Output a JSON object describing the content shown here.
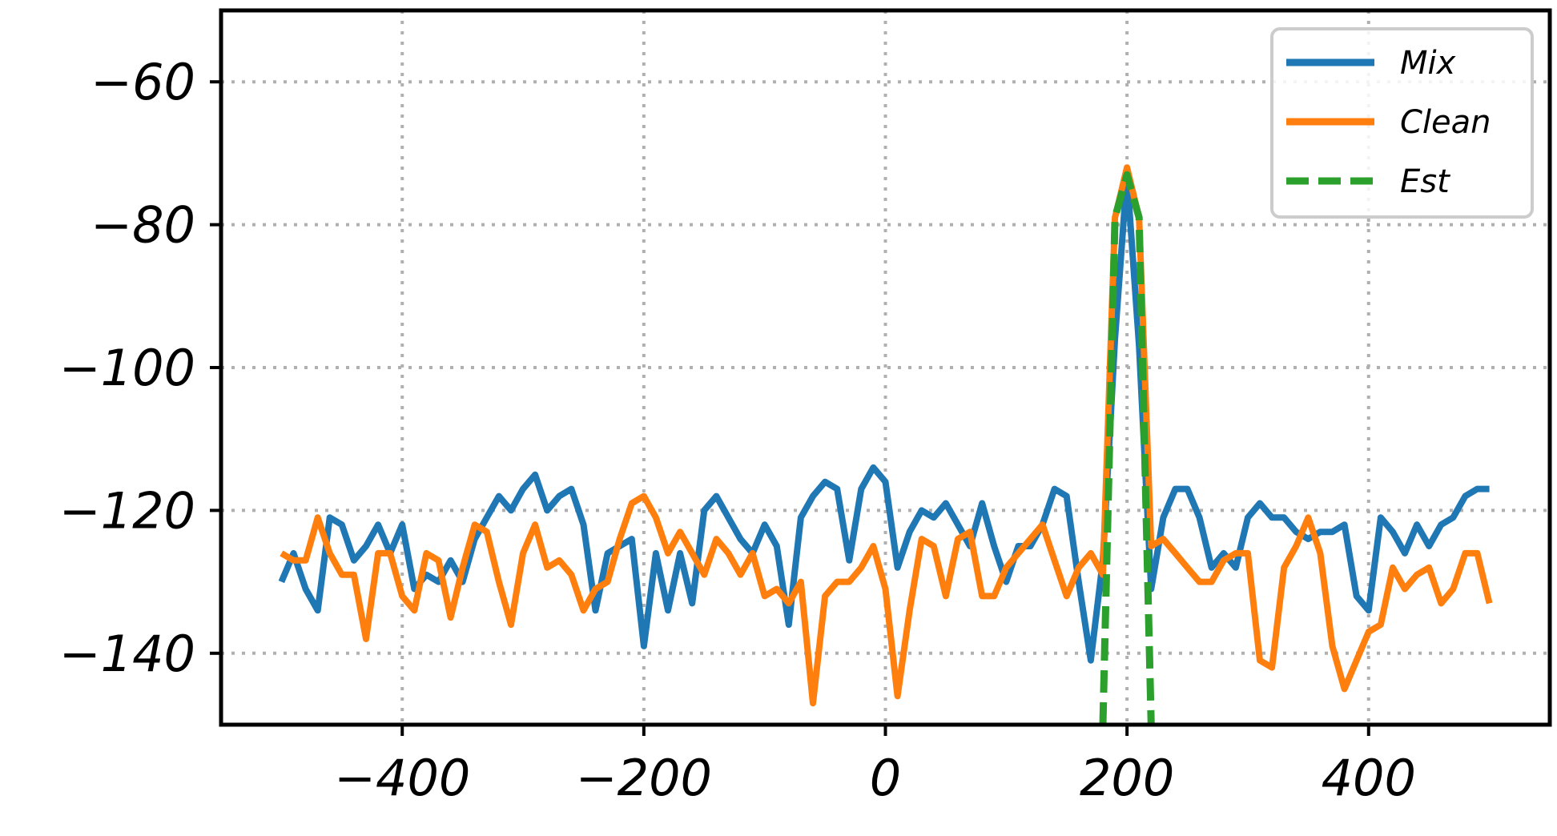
{
  "chart_data": {
    "type": "line",
    "title": "",
    "xlabel": "",
    "ylabel": "",
    "xlim": [
      -550,
      550
    ],
    "ylim": [
      -150,
      -50
    ],
    "xticks": [
      -400,
      -200,
      0,
      200,
      400
    ],
    "yticks": [
      -60,
      -80,
      -100,
      -120,
      -140
    ],
    "grid": true,
    "legend": "top-right",
    "series": [
      {
        "name": "Mix",
        "color": "#1f77b4",
        "dash": "solid",
        "x": [
          -500,
          -490,
          -480,
          -470,
          -460,
          -450,
          -440,
          -430,
          -420,
          -410,
          -400,
          -390,
          -380,
          -370,
          -360,
          -350,
          -340,
          -330,
          -320,
          -310,
          -300,
          -290,
          -280,
          -270,
          -260,
          -250,
          -240,
          -230,
          -220,
          -210,
          -200,
          -190,
          -180,
          -170,
          -160,
          -150,
          -140,
          -130,
          -120,
          -110,
          -100,
          -90,
          -80,
          -70,
          -60,
          -50,
          -40,
          -30,
          -20,
          -10,
          0,
          10,
          20,
          30,
          40,
          50,
          60,
          70,
          80,
          90,
          100,
          110,
          120,
          130,
          140,
          150,
          160,
          170,
          180,
          190,
          200,
          210,
          220,
          230,
          240,
          250,
          260,
          270,
          280,
          290,
          300,
          310,
          320,
          330,
          340,
          350,
          360,
          370,
          380,
          390,
          400,
          410,
          420,
          430,
          440,
          450,
          460,
          470,
          480,
          490,
          500
        ],
        "y": [
          -130,
          -126,
          -131,
          -134,
          -121,
          -122,
          -127,
          -125,
          -122,
          -126,
          -122,
          -131,
          -129,
          -130,
          -127,
          -130,
          -124,
          -121,
          -118,
          -120,
          -117,
          -115,
          -120,
          -118,
          -117,
          -122,
          -134,
          -126,
          -125,
          -124,
          -139,
          -126,
          -134,
          -126,
          -133,
          -120,
          -118,
          -121,
          -124,
          -126,
          -122,
          -125,
          -136,
          -121,
          -118,
          -116,
          -117,
          -127,
          -117,
          -114,
          -116,
          -128,
          -123,
          -120,
          -121,
          -119,
          -122,
          -125,
          -119,
          -125,
          -130,
          -125,
          -125,
          -122,
          -117,
          -118,
          -130,
          -141,
          -127,
          -96,
          -73,
          -97,
          -131,
          -121,
          -117,
          -117,
          -121,
          -128,
          -126,
          -128,
          -121,
          -119,
          -121,
          -121,
          -123,
          -124,
          -123,
          -123,
          -122,
          -132,
          -134,
          -121,
          -123,
          -126,
          -122,
          -125,
          -122,
          -121,
          -118,
          -117,
          -117
        ]
      },
      {
        "name": "Clean",
        "color": "#ff7f0e",
        "dash": "solid",
        "x": [
          -500,
          -490,
          -480,
          -470,
          -460,
          -450,
          -440,
          -430,
          -420,
          -410,
          -400,
          -390,
          -380,
          -370,
          -360,
          -350,
          -340,
          -330,
          -320,
          -310,
          -300,
          -290,
          -280,
          -270,
          -260,
          -250,
          -240,
          -230,
          -220,
          -210,
          -200,
          -190,
          -180,
          -170,
          -160,
          -150,
          -140,
          -130,
          -120,
          -110,
          -100,
          -90,
          -80,
          -70,
          -60,
          -50,
          -40,
          -30,
          -20,
          -10,
          0,
          10,
          20,
          30,
          40,
          50,
          60,
          70,
          80,
          90,
          100,
          110,
          120,
          130,
          140,
          150,
          160,
          170,
          180,
          190,
          200,
          210,
          220,
          230,
          240,
          250,
          260,
          270,
          280,
          290,
          300,
          310,
          320,
          330,
          340,
          350,
          360,
          370,
          380,
          390,
          400,
          410,
          420,
          430,
          440,
          450,
          460,
          470,
          480,
          490,
          500
        ],
        "y": [
          -126,
          -127,
          -127,
          -121,
          -126,
          -129,
          -129,
          -138,
          -126,
          -126,
          -132,
          -134,
          -126,
          -127,
          -135,
          -128,
          -122,
          -123,
          -130,
          -136,
          -126,
          -122,
          -128,
          -127,
          -129,
          -134,
          -131,
          -130,
          -124,
          -119,
          -118,
          -121,
          -126,
          -123,
          -126,
          -129,
          -124,
          -126,
          -129,
          -126,
          -132,
          -131,
          -133,
          -130,
          -147,
          -132,
          -130,
          -130,
          -128,
          -125,
          -131,
          -146,
          -134,
          -124,
          -125,
          -132,
          -124,
          -123,
          -132,
          -132,
          -128,
          -126,
          -124,
          -122,
          -127,
          -132,
          -128,
          -126,
          -129,
          -79,
          -72,
          -79,
          -125,
          -124,
          -126,
          -128,
          -130,
          -130,
          -127,
          -126,
          -126,
          -141,
          -142,
          -128,
          -125,
          -121,
          -126,
          -139,
          -145,
          -141,
          -137,
          -136,
          -128,
          -131,
          -129,
          -128,
          -133,
          -131,
          -126,
          -126,
          -133
        ]
      },
      {
        "name": "Est",
        "color": "#2ca02c",
        "dash": "dashed",
        "x": [
          180,
          190,
          200,
          210,
          220
        ],
        "y": [
          -150,
          -79,
          -73,
          -79,
          -150
        ]
      }
    ]
  }
}
